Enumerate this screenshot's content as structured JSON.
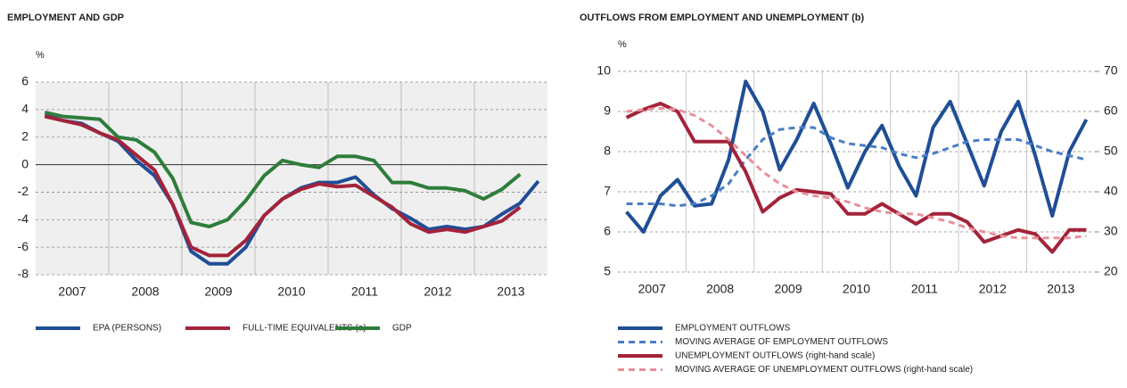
{
  "chart_data": [
    {
      "type": "line",
      "title": "EMPLOYMENT AND GDP",
      "ylabel": "%",
      "x": [
        2007.125,
        2007.375,
        2007.625,
        2007.875,
        2008.125,
        2008.375,
        2008.625,
        2008.875,
        2009.125,
        2009.375,
        2009.625,
        2009.875,
        2010.125,
        2010.375,
        2010.625,
        2010.875,
        2011.125,
        2011.375,
        2011.625,
        2011.875,
        2012.125,
        2012.375,
        2012.625,
        2012.875,
        2013.125,
        2013.375,
        2013.625,
        2013.875
      ],
      "xlim": [
        2007,
        2014
      ],
      "xticks": [
        {
          "value": 2007.5,
          "label": "2007"
        },
        {
          "value": 2008.5,
          "label": "2008"
        },
        {
          "value": 2009.5,
          "label": "2009"
        },
        {
          "value": 2010.5,
          "label": "2010"
        },
        {
          "value": 2011.5,
          "label": "2011"
        },
        {
          "value": 2012.5,
          "label": "2012"
        },
        {
          "value": 2013.5,
          "label": "2013"
        }
      ],
      "ylim": [
        -8,
        6
      ],
      "yticks": [
        -8,
        -6,
        -4,
        -2,
        0,
        2,
        4,
        6
      ],
      "grid": true,
      "series": [
        {
          "name": "EPA (PERSONS)",
          "color": "#1f4e96",
          "values": [
            3.6,
            3.2,
            3.0,
            2.3,
            1.7,
            0.3,
            -0.8,
            -2.9,
            -6.3,
            -7.2,
            -7.2,
            -6.0,
            -3.7,
            -2.5,
            -1.7,
            -1.3,
            -1.3,
            -0.9,
            -2.2,
            -3.2,
            -3.9,
            -4.7,
            -4.5,
            -4.7,
            -4.5,
            -3.6,
            -2.8,
            -1.2
          ]
        },
        {
          "name": "FULL-TIME EQUIVALENTS (a)",
          "color": "#a3233a",
          "values": [
            3.5,
            3.2,
            2.9,
            2.3,
            1.8,
            0.7,
            -0.4,
            -2.9,
            -6.0,
            -6.6,
            -6.6,
            -5.5,
            -3.7,
            -2.5,
            -1.8,
            -1.4,
            -1.6,
            -1.5,
            -2.3,
            -3.1,
            -4.3,
            -4.9,
            -4.7,
            -4.9,
            -4.5,
            -4.1,
            -3.1,
            null
          ]
        },
        {
          "name": "GDP",
          "color": "#2e7d3a",
          "values": [
            3.8,
            3.5,
            3.4,
            3.3,
            2.0,
            1.8,
            0.9,
            -1.0,
            -4.2,
            -4.5,
            -4.0,
            -2.6,
            -0.8,
            0.3,
            0.0,
            -0.2,
            0.6,
            0.6,
            0.3,
            -1.3,
            -1.3,
            -1.7,
            -1.7,
            -1.9,
            -2.5,
            -1.8,
            -0.7,
            null
          ]
        }
      ]
    },
    {
      "type": "line",
      "title": "OUTFLOWS FROM EMPLOYMENT AND UNEMPLOYMENT (b)",
      "ylabel": "%",
      "x": [
        2007.125,
        2007.375,
        2007.625,
        2007.875,
        2008.125,
        2008.375,
        2008.625,
        2008.875,
        2009.125,
        2009.375,
        2009.625,
        2009.875,
        2010.125,
        2010.375,
        2010.625,
        2010.875,
        2011.125,
        2011.375,
        2011.625,
        2011.875,
        2012.125,
        2012.375,
        2012.625,
        2012.875,
        2013.125,
        2013.375,
        2013.625,
        2013.875
      ],
      "xlim": [
        2007,
        2014
      ],
      "xticks": [
        {
          "value": 2007.5,
          "label": "2007"
        },
        {
          "value": 2008.5,
          "label": "2008"
        },
        {
          "value": 2009.5,
          "label": "2009"
        },
        {
          "value": 2010.5,
          "label": "2010"
        },
        {
          "value": 2011.5,
          "label": "2011"
        },
        {
          "value": 2012.5,
          "label": "2012"
        },
        {
          "value": 2013.5,
          "label": "2013"
        }
      ],
      "ylim": [
        5,
        10
      ],
      "yticks": [
        5,
        6,
        7,
        8,
        9,
        10
      ],
      "y2lim": [
        20,
        70
      ],
      "y2ticks": [
        20,
        30,
        40,
        50,
        60,
        70
      ],
      "grid": true,
      "series": [
        {
          "name": "EMPLOYMENT OUTFLOWS",
          "color": "#1f4e96",
          "dashed": false,
          "values": [
            6.5,
            6.0,
            6.9,
            7.3,
            6.65,
            6.7,
            7.8,
            9.75,
            9.0,
            7.55,
            8.3,
            9.2,
            8.2,
            7.1,
            8.0,
            8.65,
            7.65,
            6.9,
            8.6,
            9.25,
            8.2,
            7.15,
            8.5,
            9.25,
            7.9,
            6.4,
            8.0,
            8.8
          ]
        },
        {
          "name": "MOVING AVERAGE OF EMPLOYMENT OUTFLOWS",
          "color": "#4a7ec3",
          "dashed": true,
          "values": [
            6.7,
            6.7,
            6.7,
            6.65,
            6.7,
            6.9,
            7.2,
            7.8,
            8.3,
            8.55,
            8.6,
            8.6,
            8.35,
            8.2,
            8.15,
            8.1,
            7.95,
            7.85,
            7.95,
            8.1,
            8.25,
            8.3,
            8.3,
            8.3,
            8.15,
            8.0,
            7.9,
            7.8
          ]
        },
        {
          "name": "UNEMPLOYMENT OUTFLOWS (right-hand scale)",
          "color": "#a3233a",
          "dashed": false,
          "axis": "y2",
          "values": [
            58.5,
            60.5,
            62,
            60,
            52.5,
            52.5,
            52.5,
            45,
            35,
            38.5,
            40.5,
            40,
            39.5,
            34.5,
            34.5,
            37,
            34.5,
            32,
            34.5,
            34.5,
            32.5,
            27.5,
            29,
            30.5,
            29.5,
            25,
            30.5,
            30.5
          ]
        },
        {
          "name": "MOVING AVERAGE OF UNEMPLOYMENT OUTFLOWS (right-hand scale)",
          "color": "#e8909a",
          "dashed": true,
          "axis": "y2",
          "values": [
            60,
            60.5,
            60.8,
            60.5,
            59,
            56.5,
            53,
            49,
            45,
            42,
            40,
            39,
            38.5,
            37.5,
            36,
            35,
            34.5,
            34.5,
            33.5,
            32.5,
            31,
            30,
            29,
            28.5,
            28.5,
            28.5,
            28.5,
            29
          ]
        }
      ]
    }
  ]
}
